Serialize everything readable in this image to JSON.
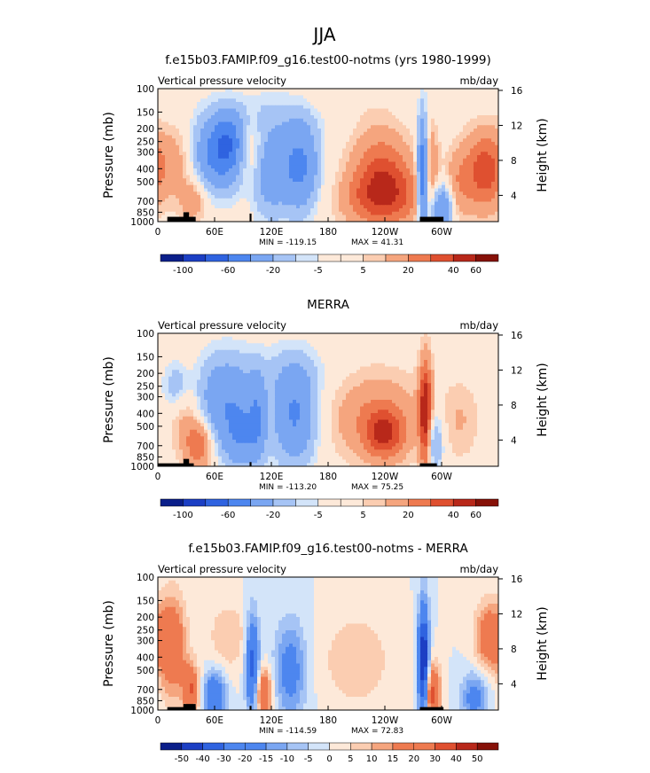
{
  "figure": {
    "title": "JJA"
  },
  "colors": {
    "scale": [
      "#0b1f8a",
      "#1c3fc4",
      "#2f63e0",
      "#4d86ef",
      "#7aa6f2",
      "#a6c4f5",
      "#d3e4f9",
      "#fde9d9",
      "#fbcdb1",
      "#f5a57e",
      "#ee7a50",
      "#df5030",
      "#b8281a",
      "#861108"
    ],
    "land_mask": "#000000"
  },
  "chart_data": [
    {
      "type": "heatmap",
      "title": "f.e15b03.FAMIP.f09_g16.test00-notms (yrs 1980-1999)",
      "left_label": "Vertical pressure velocity",
      "right_label": "mb/day",
      "xlabel": "",
      "ylabel": "Pressure (mb)",
      "y2label": "Height (km)",
      "x_ticks": [
        "0",
        "60E",
        "120E",
        "180",
        "120W",
        "60W"
      ],
      "y_ticks": [
        "100",
        "150",
        "200",
        "250",
        "300",
        "400",
        "500",
        "700",
        "850",
        "1000"
      ],
      "y2_ticks": [
        "16",
        "12",
        "8",
        "4"
      ],
      "xlim": [
        0,
        360
      ],
      "ylim": [
        1000,
        100
      ],
      "y_scale": "log",
      "min_label": "MIN =  -119.15",
      "max_label": "MAX =   41.31",
      "min": -119.15,
      "max": 41.31,
      "colorbar_levels": [
        -150,
        -100,
        -80,
        -60,
        -40,
        -20,
        -10,
        -5,
        0,
        5,
        10,
        20,
        30,
        40,
        60,
        80
      ],
      "colorbar_labels": [
        "-100",
        "-60",
        "-20",
        "-5",
        "5",
        "20",
        "40",
        "60"
      ],
      "colorbar_label_levels": [
        -100,
        -60,
        -20,
        -5,
        5,
        20,
        40,
        60
      ],
      "blobs": [
        {
          "lon": 25,
          "p": 350,
          "sx": 18,
          "sy": 0.45,
          "v": 22
        },
        {
          "lon": 38,
          "p": 700,
          "sx": 10,
          "sy": 0.25,
          "v": 18
        },
        {
          "lon": 60,
          "p": 320,
          "sx": 22,
          "sy": 0.45,
          "v": -45
        },
        {
          "lon": 75,
          "p": 250,
          "sx": 12,
          "sy": 0.35,
          "v": -35
        },
        {
          "lon": 97,
          "p": 300,
          "sx": 10,
          "sy": 0.4,
          "v": 20
        },
        {
          "lon": 118,
          "p": 420,
          "sx": 13,
          "sy": 0.55,
          "v": -30
        },
        {
          "lon": 150,
          "p": 380,
          "sx": 14,
          "sy": 0.55,
          "v": -45
        },
        {
          "lon": 125,
          "p": 150,
          "sx": 45,
          "sy": 0.3,
          "v": -10
        },
        {
          "lon": 172,
          "p": 130,
          "sx": 40,
          "sy": 0.25,
          "v": 6
        },
        {
          "lon": 235,
          "p": 420,
          "sx": 22,
          "sy": 0.55,
          "v": 28
        },
        {
          "lon": 215,
          "p": 700,
          "sx": 25,
          "sy": 0.3,
          "v": 10
        },
        {
          "lon": 250,
          "p": 650,
          "sx": 28,
          "sy": 0.4,
          "v": 22
        },
        {
          "lon": 280,
          "p": 450,
          "sx": 4,
          "sy": 0.7,
          "v": -65
        },
        {
          "lon": 288,
          "p": 350,
          "sx": 6,
          "sy": 0.5,
          "v": 18
        },
        {
          "lon": 300,
          "p": 800,
          "sx": 8,
          "sy": 0.3,
          "v": -45
        },
        {
          "lon": 318,
          "p": 500,
          "sx": 10,
          "sy": 0.45,
          "v": 16
        },
        {
          "lon": 345,
          "p": 420,
          "sx": 14,
          "sy": 0.5,
          "v": 35
        }
      ],
      "land": [
        {
          "lon0": 10,
          "lon1": 40,
          "p_top": 920
        },
        {
          "lon0": 27,
          "lon1": 33,
          "p_top": 850
        },
        {
          "lon0": 97,
          "lon1": 99,
          "p_top": 870
        },
        {
          "lon0": 277,
          "lon1": 302,
          "p_top": 920
        }
      ]
    },
    {
      "type": "heatmap",
      "title": "MERRA",
      "left_label": "Vertical pressure velocity",
      "right_label": "mb/day",
      "xlabel": "",
      "ylabel": "Pressure (mb)",
      "y2label": "Height (km)",
      "x_ticks": [
        "0",
        "60E",
        "120E",
        "180",
        "120W",
        "60W"
      ],
      "y_ticks": [
        "100",
        "150",
        "200",
        "250",
        "300",
        "400",
        "500",
        "700",
        "850",
        "1000"
      ],
      "y2_ticks": [
        "16",
        "12",
        "8",
        "4"
      ],
      "xlim": [
        0,
        360
      ],
      "ylim": [
        1000,
        100
      ],
      "y_scale": "log",
      "min_label": "MIN =  -113.20",
      "max_label": "MAX =   75.25",
      "min": -113.2,
      "max": 75.25,
      "colorbar_levels": [
        -150,
        -100,
        -80,
        -60,
        -40,
        -20,
        -10,
        -5,
        0,
        5,
        10,
        20,
        30,
        40,
        60,
        80
      ],
      "colorbar_labels": [
        "-100",
        "-60",
        "-20",
        "-5",
        "5",
        "20",
        "40",
        "60"
      ],
      "colorbar_label_levels": [
        -100,
        -60,
        -20,
        -5,
        5,
        20,
        40,
        60
      ],
      "blobs": [
        {
          "lon": 30,
          "p": 420,
          "sx": 12,
          "sy": 0.55,
          "v": 16
        },
        {
          "lon": 45,
          "p": 680,
          "sx": 10,
          "sy": 0.3,
          "v": 30
        },
        {
          "lon": 20,
          "p": 250,
          "sx": 10,
          "sy": 0.3,
          "v": -18
        },
        {
          "lon": 70,
          "p": 330,
          "sx": 22,
          "sy": 0.55,
          "v": -35
        },
        {
          "lon": 90,
          "p": 620,
          "sx": 14,
          "sy": 0.4,
          "v": -30
        },
        {
          "lon": 105,
          "p": 430,
          "sx": 6,
          "sy": 0.5,
          "v": -25
        },
        {
          "lon": 145,
          "p": 420,
          "sx": 16,
          "sy": 0.6,
          "v": -42
        },
        {
          "lon": 130,
          "p": 200,
          "sx": 40,
          "sy": 0.35,
          "v": -8
        },
        {
          "lon": 230,
          "p": 420,
          "sx": 35,
          "sy": 0.55,
          "v": 20
        },
        {
          "lon": 240,
          "p": 580,
          "sx": 15,
          "sy": 0.3,
          "v": 30
        },
        {
          "lon": 283,
          "p": 450,
          "sx": 5,
          "sy": 0.7,
          "v": 55
        },
        {
          "lon": 290,
          "p": 650,
          "sx": 8,
          "sy": 0.4,
          "v": -30
        },
        {
          "lon": 320,
          "p": 450,
          "sx": 15,
          "sy": 0.5,
          "v": 10
        }
      ],
      "land": [
        {
          "lon0": 0,
          "lon1": 38,
          "p_top": 950
        },
        {
          "lon0": 27,
          "lon1": 33,
          "p_top": 880
        },
        {
          "lon0": 97,
          "lon1": 99,
          "p_top": 930
        },
        {
          "lon0": 277,
          "lon1": 295,
          "p_top": 950
        }
      ]
    },
    {
      "type": "heatmap",
      "title": "f.e15b03.FAMIP.f09_g16.test00-notms - MERRA",
      "left_label": "Vertical pressure velocity",
      "right_label": "mb/day",
      "xlabel": "",
      "ylabel": "Pressure (mb)",
      "y2label": "Height (km)",
      "x_ticks": [
        "0",
        "60E",
        "120E",
        "180",
        "120W",
        "60W"
      ],
      "y_ticks": [
        "100",
        "150",
        "200",
        "250",
        "300",
        "400",
        "500",
        "700",
        "850",
        "1000"
      ],
      "y2_ticks": [
        "16",
        "12",
        "8",
        "4"
      ],
      "xlim": [
        0,
        360
      ],
      "ylim": [
        1000,
        100
      ],
      "y_scale": "log",
      "min_label": "MIN =  -114.59",
      "max_label": "MAX =   72.83",
      "min": -114.59,
      "max": 72.83,
      "colorbar_levels": [
        -60,
        -50,
        -40,
        -30,
        -20,
        -15,
        -10,
        -5,
        0,
        5,
        10,
        15,
        20,
        30,
        40,
        50,
        60
      ],
      "colorbar_labels": [
        "-50",
        "-40",
        "-30",
        "-20",
        "-15",
        "-10",
        "-5",
        "0",
        "5",
        "10",
        "15",
        "20",
        "30",
        "40",
        "50"
      ],
      "colorbar_label_levels": [
        -50,
        -40,
        -30,
        -20,
        -15,
        -10,
        -5,
        0,
        5,
        10,
        15,
        20,
        30,
        40,
        50
      ],
      "blobs": [
        {
          "lon": 15,
          "p": 330,
          "sx": 10,
          "sy": 0.6,
          "v": 28
        },
        {
          "lon": 35,
          "p": 700,
          "sx": 6,
          "sy": 0.3,
          "v": 30
        },
        {
          "lon": 60,
          "p": 800,
          "sx": 8,
          "sy": 0.3,
          "v": -30
        },
        {
          "lon": 75,
          "p": 280,
          "sx": 15,
          "sy": 0.4,
          "v": 10
        },
        {
          "lon": 100,
          "p": 450,
          "sx": 5,
          "sy": 0.6,
          "v": -35
        },
        {
          "lon": 112,
          "p": 750,
          "sx": 6,
          "sy": 0.3,
          "v": 30
        },
        {
          "lon": 140,
          "p": 500,
          "sx": 12,
          "sy": 0.6,
          "v": -20
        },
        {
          "lon": 210,
          "p": 420,
          "sx": 25,
          "sy": 0.55,
          "v": 10
        },
        {
          "lon": 281,
          "p": 450,
          "sx": 4,
          "sy": 0.7,
          "v": -55
        },
        {
          "lon": 290,
          "p": 750,
          "sx": 6,
          "sy": 0.35,
          "v": 35
        },
        {
          "lon": 335,
          "p": 800,
          "sx": 10,
          "sy": 0.3,
          "v": -20
        },
        {
          "lon": 350,
          "p": 280,
          "sx": 10,
          "sy": 0.4,
          "v": 25
        }
      ],
      "land": [
        {
          "lon0": 10,
          "lon1": 40,
          "p_top": 950
        },
        {
          "lon0": 27,
          "lon1": 40,
          "p_top": 900
        },
        {
          "lon0": 97,
          "lon1": 99,
          "p_top": 930
        },
        {
          "lon0": 277,
          "lon1": 302,
          "p_top": 950
        }
      ]
    }
  ]
}
